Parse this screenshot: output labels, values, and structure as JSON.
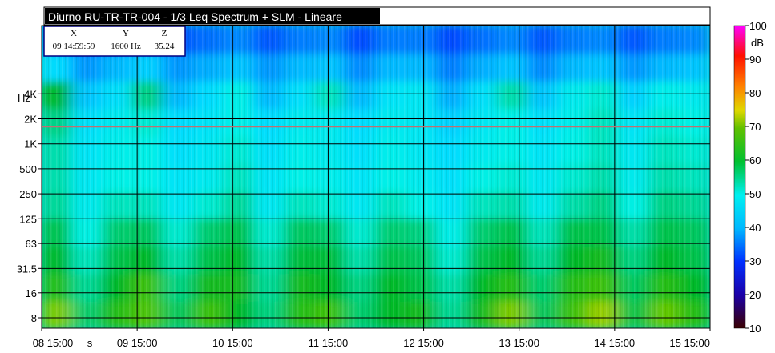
{
  "header": {
    "title": "Diurno RU-TR-TR-004 - 1/3 Leq Spectrum + SLM - Lineare"
  },
  "cursor_readout": {
    "x_label": "X",
    "y_label": "Y",
    "z_label": "Z",
    "x_value": "09 14:59:59",
    "y_value": "1600 Hz",
    "z_value": "35.24"
  },
  "chart_data": {
    "type": "heatmap",
    "title": "Diurno RU-TR-TR-004 - 1/3 Leq Spectrum + SLM - Lineare",
    "xlabel": "s",
    "ylabel": "Hz",
    "x_ticks": [
      "08 15:00",
      "09 15:00",
      "10 15:00",
      "11 15:00",
      "12 15:00",
      "13 15:00",
      "14 15:00",
      "15 15:00"
    ],
    "y_ticks": [
      "8",
      "16",
      "31.5",
      "63",
      "125",
      "250",
      "500",
      "1K",
      "2K",
      "4K"
    ],
    "y_scale": "log",
    "colorbar": {
      "label": "dB",
      "ticks": [
        "10",
        "20",
        "30",
        "40",
        "50",
        "60",
        "70",
        "80",
        "90",
        "100"
      ],
      "range": [
        10,
        100
      ]
    },
    "cursor_frequency_hz": 1600,
    "grid": true,
    "x": [
      "08 15:00",
      "09 00:00",
      "09 09:00",
      "09 15:00",
      "10 00:00",
      "10 09:00",
      "10 15:00",
      "11 00:00",
      "11 09:00",
      "11 15:00",
      "12 00:00",
      "12 09:00",
      "12 15:00",
      "13 00:00",
      "13 09:00",
      "13 15:00",
      "14 00:00",
      "14 09:00",
      "14 15:00",
      "15 00:00",
      "15 09:00",
      "15 15:00"
    ],
    "y": [
      "8",
      "16",
      "31.5",
      "63",
      "125",
      "250",
      "500",
      "1K",
      "2K",
      "4K",
      "8K"
    ],
    "z": [
      [
        66,
        56,
        62,
        64,
        57,
        63,
        60,
        55,
        62,
        63,
        56,
        60,
        61,
        54,
        61,
        66,
        57,
        63,
        67,
        58,
        65,
        62
      ],
      [
        62,
        54,
        60,
        63,
        55,
        61,
        61,
        54,
        61,
        60,
        55,
        60,
        58,
        53,
        60,
        62,
        56,
        62,
        63,
        57,
        62,
        60
      ],
      [
        60,
        52,
        58,
        60,
        53,
        58,
        60,
        53,
        59,
        59,
        53,
        58,
        57,
        51,
        58,
        60,
        54,
        60,
        61,
        55,
        60,
        58
      ],
      [
        58,
        50,
        56,
        57,
        51,
        56,
        58,
        51,
        57,
        56,
        51,
        56,
        55,
        49,
        56,
        58,
        52,
        58,
        58,
        53,
        58,
        57
      ],
      [
        54,
        48,
        52,
        52,
        47,
        51,
        54,
        47,
        52,
        51,
        47,
        52,
        50,
        46,
        52,
        53,
        48,
        53,
        55,
        50,
        55,
        54
      ],
      [
        53,
        47,
        50,
        50,
        46,
        48,
        52,
        46,
        50,
        49,
        46,
        50,
        48,
        45,
        50,
        51,
        47,
        51,
        53,
        48,
        53,
        52
      ],
      [
        53,
        46,
        49,
        50,
        45,
        47,
        51,
        45,
        49,
        48,
        45,
        49,
        47,
        44,
        48,
        50,
        46,
        50,
        52,
        47,
        52,
        51
      ],
      [
        55,
        45,
        48,
        51,
        44,
        46,
        50,
        44,
        48,
        48,
        44,
        48,
        47,
        43,
        47,
        50,
        45,
        49,
        52,
        46,
        51,
        50
      ],
      [
        60,
        42,
        45,
        55,
        41,
        44,
        50,
        41,
        45,
        52,
        41,
        46,
        47,
        40,
        45,
        53,
        42,
        48,
        51,
        43,
        49,
        48
      ],
      [
        44,
        38,
        41,
        43,
        38,
        40,
        42,
        38,
        41,
        42,
        37,
        41,
        41,
        36,
        40,
        42,
        37,
        41,
        42,
        38,
        41,
        42
      ],
      [
        38,
        34,
        36,
        37,
        33,
        35,
        37,
        33,
        36,
        37,
        32,
        36,
        36,
        32,
        35,
        37,
        33,
        36,
        37,
        33,
        36,
        37
      ]
    ]
  }
}
